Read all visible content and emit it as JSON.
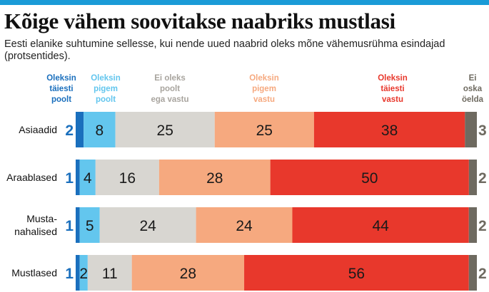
{
  "title": "Kõige vähem soovitakse naabriks mustlasi",
  "subtitle": "Eesti elanike suhtumine sellesse, kui nende uued naabrid oleks mõne vähemusrühma esindajad (protsentides).",
  "colors": {
    "accent": "#1a9bd7",
    "fully_for": "#1a6fbd",
    "rather_for": "#63c6ee",
    "neutral": "#d8d6d1",
    "rather_against": "#f6a97f",
    "fully_against": "#e8382c",
    "dont_know": "#6e6a60"
  },
  "chart_data": {
    "type": "bar",
    "stacked": true,
    "orientation": "horizontal",
    "categories": [
      "Asiaadid",
      "Araablased",
      "Musta-\nnahalised",
      "Mustlased"
    ],
    "series": [
      {
        "name": "Oleksin\ntäiesti\npoolt",
        "values": [
          2,
          1,
          1,
          1
        ]
      },
      {
        "name": "Oleksin\npigem\npoolt",
        "values": [
          8,
          4,
          5,
          2
        ]
      },
      {
        "name": "Ei oleks\npoolt\nega vastu",
        "values": [
          25,
          16,
          24,
          11
        ]
      },
      {
        "name": "Oleksin\npigem\nvastu",
        "values": [
          25,
          28,
          24,
          28
        ]
      },
      {
        "name": "Oleksin\ntäiesti\nvastu",
        "values": [
          38,
          50,
          44,
          56
        ]
      },
      {
        "name": "Ei\noska\nöelda",
        "values": [
          3,
          2,
          2,
          2
        ]
      }
    ],
    "legend_position": "top"
  }
}
